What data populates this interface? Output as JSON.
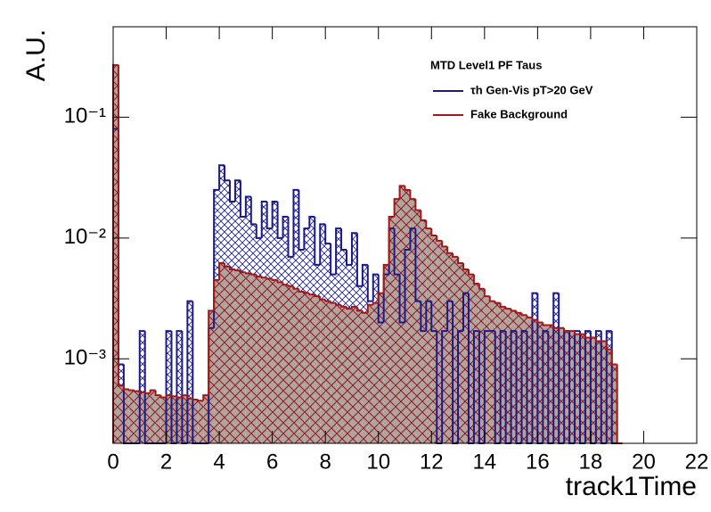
{
  "chart_data": {
    "type": "histogram",
    "xlabel": "track1Time",
    "ylabel": "A.U.",
    "legend_title": "MTD Level1 PF Taus",
    "legend": "upper right",
    "log_y": true,
    "xlim": [
      0,
      22
    ],
    "ylim": [
      0.0002,
      0.56
    ],
    "xticks": [
      0,
      2,
      4,
      6,
      8,
      10,
      12,
      14,
      16,
      18,
      20,
      22
    ],
    "yticks": [
      {
        "value": 0.001,
        "label": "10⁻³"
      },
      {
        "value": 0.01,
        "label": "10⁻²"
      },
      {
        "value": 0.1,
        "label": "10⁻¹"
      }
    ],
    "bins": [
      0,
      0.2,
      0.4,
      0.6,
      0.8,
      1.0,
      1.2,
      1.4,
      1.6,
      1.8,
      2.0,
      2.2,
      2.4,
      2.6,
      2.8,
      3.0,
      3.2,
      3.4,
      3.6,
      3.8,
      4.0,
      4.2,
      4.4,
      4.6,
      4.8,
      5.0,
      5.2,
      5.4,
      5.6,
      5.8,
      6.0,
      6.2,
      6.4,
      6.6,
      6.8,
      7.0,
      7.2,
      7.4,
      7.6,
      7.8,
      8.0,
      8.2,
      8.4,
      8.6,
      8.8,
      9.0,
      9.2,
      9.4,
      9.6,
      9.8,
      10.0,
      10.2,
      10.4,
      10.6,
      10.8,
      11.0,
      11.2,
      11.4,
      11.6,
      11.8,
      12.0,
      12.2,
      12.4,
      12.6,
      12.8,
      13.0,
      13.2,
      13.4,
      13.6,
      13.8,
      14.0,
      14.2,
      14.4,
      14.6,
      14.8,
      15.0,
      15.2,
      15.4,
      15.6,
      15.8,
      16.0,
      16.2,
      16.4,
      16.6,
      16.8,
      17.0,
      17.2,
      17.4,
      17.6,
      17.8,
      18.0,
      18.2,
      18.4,
      18.6,
      18.8,
      19.0,
      19.2
    ],
    "series": [
      {
        "name": "τh Gen-Vis pT>20 GeV",
        "color": "#1a1a8c",
        "values": [
          0.08,
          0.0009,
          0,
          0,
          0,
          0.0017,
          0,
          0,
          0,
          0,
          0.0017,
          0,
          0.0017,
          0,
          0.003,
          0,
          0,
          0,
          0.0018,
          0.025,
          0.04,
          0.03,
          0.02,
          0.03,
          0.015,
          0.022,
          0.013,
          0.01,
          0.02,
          0.012,
          0.02,
          0.01,
          0.015,
          0.007,
          0.025,
          0.008,
          0.012,
          0.015,
          0.006,
          0.013,
          0.009,
          0.005,
          0.012,
          0.008,
          0.006,
          0.011,
          0.004,
          0.006,
          0.003,
          0.005,
          0.002,
          0.005,
          0.012,
          0.005,
          0.002,
          0.008,
          0.012,
          0.003,
          0.0017,
          0.003,
          0.0017,
          0,
          0.0017,
          0.003,
          0,
          0.0017,
          0.0035,
          0,
          0.0017,
          0,
          0.0017,
          0.0017,
          0,
          0.0017,
          0,
          0.0017,
          0,
          0.0017,
          0,
          0.0035,
          0,
          0.0017,
          0,
          0.0035,
          0,
          0.0017,
          0,
          0.0017,
          0,
          0.0017,
          0,
          0.0017,
          0,
          0.0017,
          0,
          0
        ]
      },
      {
        "name": "Fake Background",
        "color": "#a01818",
        "values": [
          0.27,
          0.0006,
          0.00056,
          0.00055,
          0.00054,
          0.00053,
          0.00052,
          0.00055,
          0.0005,
          0.00048,
          0.0005,
          0.00049,
          0.00048,
          0.0005,
          0.00047,
          0.00046,
          0.00045,
          0.0005,
          0.0025,
          0.0045,
          0.0062,
          0.0058,
          0.0055,
          0.0054,
          0.0052,
          0.0051,
          0.005,
          0.0048,
          0.0047,
          0.0046,
          0.0045,
          0.0043,
          0.0041,
          0.004,
          0.0038,
          0.0036,
          0.0035,
          0.0034,
          0.0033,
          0.0031,
          0.003,
          0.0029,
          0.0028,
          0.0027,
          0.0026,
          0.0027,
          0.0025,
          0.0024,
          0.0028,
          0.0029,
          0.0035,
          0.006,
          0.015,
          0.021,
          0.027,
          0.025,
          0.021,
          0.017,
          0.014,
          0.012,
          0.0105,
          0.0095,
          0.0085,
          0.0075,
          0.007,
          0.0062,
          0.0055,
          0.005,
          0.0042,
          0.0038,
          0.0033,
          0.003,
          0.0029,
          0.0027,
          0.0026,
          0.0025,
          0.0024,
          0.0023,
          0.0022,
          0.0021,
          0.002,
          0.0019,
          0.0019,
          0.0018,
          0.0018,
          0.0017,
          0.0017,
          0.0016,
          0.0016,
          0.0015,
          0.0015,
          0.0014,
          0.0014,
          0.0012,
          0.0009,
          0
        ]
      }
    ]
  }
}
